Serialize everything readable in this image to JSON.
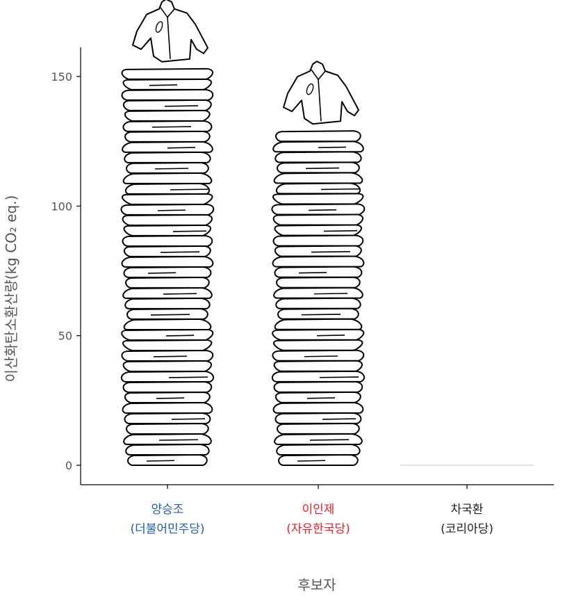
{
  "chart_data": {
    "type": "bar",
    "title": "",
    "xlabel": "후보자",
    "ylabel": "이산화탄소환산량(kg CO₂ eq.)",
    "ylim": [
      0,
      160
    ],
    "yticks": [
      0,
      50,
      100,
      150
    ],
    "grid": false,
    "bar_style": "stacked-clothing-pictogram",
    "categories": [
      {
        "name": "양승조",
        "party": "(더불어민주당)",
        "color": "#1F5FAE"
      },
      {
        "name": "이인제",
        "party": "(자유한국당)",
        "color": "#E8202A"
      },
      {
        "name": "차국환",
        "party": "(코리아당)",
        "color": "#222222"
      }
    ],
    "values": [
      153,
      129,
      0
    ]
  }
}
